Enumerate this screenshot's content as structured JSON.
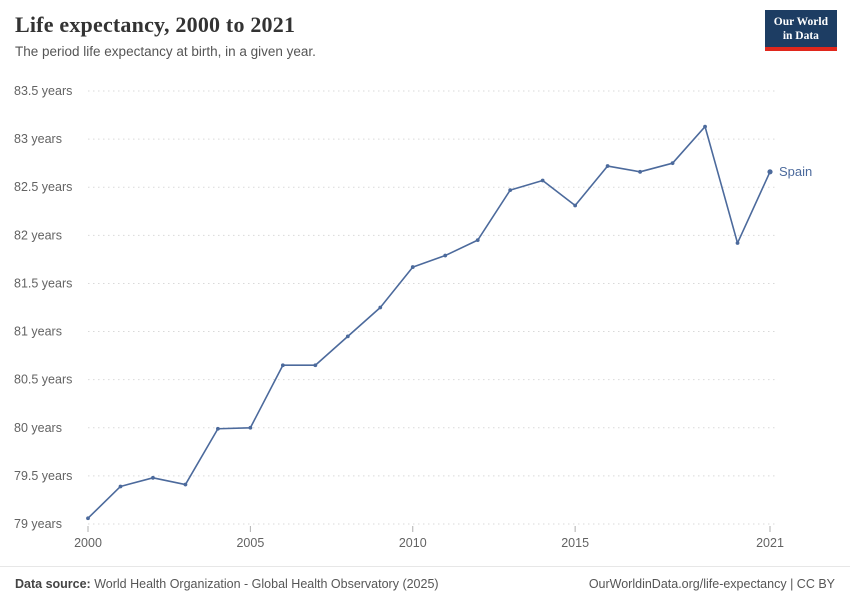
{
  "header": {
    "title": "Life expectancy, 2000 to 2021",
    "subtitle": "The period life expectancy at birth, in a given year.",
    "logo": {
      "line1": "Our World",
      "line2": "in Data",
      "bg_color": "#1d3d63",
      "accent_color": "#e0271c"
    }
  },
  "chart_data": {
    "type": "line",
    "title": "Life expectancy, 2000 to 2021",
    "xlabel": "",
    "ylabel": "",
    "x": [
      2000,
      2001,
      2002,
      2003,
      2004,
      2005,
      2006,
      2007,
      2008,
      2009,
      2010,
      2011,
      2012,
      2013,
      2014,
      2015,
      2016,
      2017,
      2018,
      2019,
      2020,
      2021
    ],
    "series": [
      {
        "name": "Spain",
        "color": "#4c6a9c",
        "values": [
          79.06,
          79.39,
          79.48,
          79.41,
          79.99,
          80.0,
          80.65,
          80.65,
          80.95,
          81.25,
          81.67,
          81.79,
          81.95,
          82.47,
          82.57,
          82.31,
          82.72,
          82.66,
          82.75,
          83.13,
          81.92,
          82.66
        ]
      }
    ],
    "ylim": [
      79,
      83.5
    ],
    "yticks": [
      79,
      79.5,
      80,
      80.5,
      81,
      81.5,
      82,
      82.5,
      83,
      83.5
    ],
    "ytick_suffix": " years",
    "xticks": [
      2000,
      2005,
      2010,
      2015,
      2021
    ],
    "grid": "dotted-horizontal",
    "legend_position": "end-of-line-label"
  },
  "footer": {
    "source_label": "Data source:",
    "source_text": " World Health Organization - Global Health Observatory (2025)",
    "url_text": "OurWorldinData.org/life-expectancy",
    "license_text": " | CC BY"
  }
}
